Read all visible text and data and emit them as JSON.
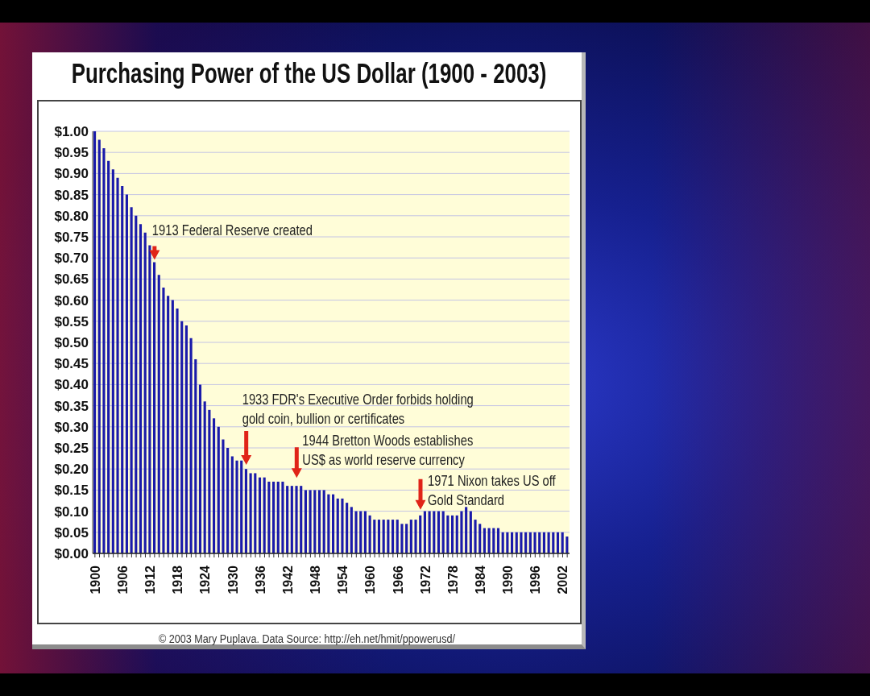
{
  "chart_data": {
    "type": "bar",
    "title": "Purchasing Power of the US Dollar (1900 - 2003)",
    "x": [
      1900,
      1901,
      1902,
      1903,
      1904,
      1905,
      1906,
      1907,
      1908,
      1909,
      1910,
      1911,
      1912,
      1913,
      1914,
      1915,
      1916,
      1917,
      1918,
      1919,
      1920,
      1921,
      1922,
      1923,
      1924,
      1925,
      1926,
      1927,
      1928,
      1929,
      1930,
      1931,
      1932,
      1933,
      1934,
      1935,
      1936,
      1937,
      1938,
      1939,
      1940,
      1941,
      1942,
      1943,
      1944,
      1945,
      1946,
      1947,
      1948,
      1949,
      1950,
      1951,
      1952,
      1953,
      1954,
      1955,
      1956,
      1957,
      1958,
      1959,
      1960,
      1961,
      1962,
      1963,
      1964,
      1965,
      1966,
      1967,
      1968,
      1969,
      1970,
      1971,
      1972,
      1973,
      1974,
      1975,
      1976,
      1977,
      1978,
      1979,
      1980,
      1981,
      1982,
      1983,
      1984,
      1985,
      1986,
      1987,
      1988,
      1989,
      1990,
      1991,
      1992,
      1993,
      1994,
      1995,
      1996,
      1997,
      1998,
      1999,
      2000,
      2001,
      2002,
      2003
    ],
    "values": [
      1.0,
      0.98,
      0.96,
      0.93,
      0.91,
      0.89,
      0.87,
      0.85,
      0.82,
      0.8,
      0.78,
      0.76,
      0.73,
      0.69,
      0.66,
      0.63,
      0.61,
      0.6,
      0.58,
      0.55,
      0.54,
      0.51,
      0.46,
      0.4,
      0.36,
      0.34,
      0.32,
      0.3,
      0.27,
      0.25,
      0.23,
      0.22,
      0.22,
      0.2,
      0.19,
      0.19,
      0.18,
      0.18,
      0.17,
      0.17,
      0.17,
      0.17,
      0.16,
      0.16,
      0.16,
      0.16,
      0.15,
      0.15,
      0.15,
      0.15,
      0.15,
      0.14,
      0.14,
      0.13,
      0.13,
      0.12,
      0.11,
      0.1,
      0.1,
      0.1,
      0.09,
      0.08,
      0.08,
      0.08,
      0.08,
      0.08,
      0.08,
      0.07,
      0.07,
      0.08,
      0.08,
      0.09,
      0.1,
      0.1,
      0.1,
      0.1,
      0.1,
      0.09,
      0.09,
      0.09,
      0.1,
      0.11,
      0.1,
      0.08,
      0.07,
      0.06,
      0.06,
      0.06,
      0.06,
      0.05,
      0.05,
      0.05,
      0.05,
      0.05,
      0.05,
      0.05,
      0.05,
      0.05,
      0.05,
      0.05,
      0.05,
      0.05,
      0.05,
      0.04
    ],
    "color": "#1a1aaa",
    "xlim": [
      1899.5,
      2003.5
    ],
    "xticks": [
      1900,
      {
        "value": 1901,
        "label": null
      },
      {
        "value": 1902,
        "label": null
      },
      {
        "value": 1903,
        "label": null
      },
      {
        "value": 1904,
        "label": null
      },
      {
        "value": 1905,
        "label": null
      },
      1906,
      {
        "value": 1907,
        "label": null
      },
      {
        "value": 1908,
        "label": null
      },
      {
        "value": 1909,
        "label": null
      },
      {
        "value": 1910,
        "label": null
      },
      {
        "value": 1911,
        "label": null
      },
      1912,
      {
        "value": 1913,
        "label": null
      },
      {
        "value": 1914,
        "label": null
      },
      {
        "value": 1915,
        "label": null
      },
      {
        "value": 1916,
        "label": null
      },
      {
        "value": 1917,
        "label": null
      },
      1918,
      {
        "value": 1919,
        "label": null
      },
      {
        "value": 1920,
        "label": null
      },
      {
        "value": 1921,
        "label": null
      },
      {
        "value": 1922,
        "label": null
      },
      {
        "value": 1923,
        "label": null
      },
      1924,
      {
        "value": 1925,
        "label": null
      },
      {
        "value": 1926,
        "label": null
      },
      {
        "value": 1927,
        "label": null
      },
      {
        "value": 1928,
        "label": null
      },
      {
        "value": 1929,
        "label": null
      },
      1930,
      {
        "value": 1931,
        "label": null
      },
      {
        "value": 1932,
        "label": null
      },
      {
        "value": 1933,
        "label": null
      },
      {
        "value": 1934,
        "label": null
      },
      {
        "value": 1935,
        "label": null
      },
      1936,
      {
        "value": 1937,
        "label": null
      },
      {
        "value": 1938,
        "label": null
      },
      {
        "value": 1939,
        "label": null
      },
      {
        "value": 1940,
        "label": null
      },
      {
        "value": 1941,
        "label": null
      },
      1942,
      {
        "value": 1943,
        "label": null
      },
      {
        "value": 1944,
        "label": null
      },
      {
        "value": 1945,
        "label": null
      },
      {
        "value": 1946,
        "label": null
      },
      {
        "value": 1947,
        "label": null
      },
      1948,
      {
        "value": 1949,
        "label": null
      },
      {
        "value": 1950,
        "label": null
      },
      {
        "value": 1951,
        "label": null
      },
      {
        "value": 1952,
        "label": null
      },
      {
        "value": 1953,
        "label": null
      },
      1954,
      {
        "value": 1955,
        "label": null
      },
      {
        "value": 1956,
        "label": null
      },
      {
        "value": 1957,
        "label": null
      },
      {
        "value": 1958,
        "label": null
      },
      {
        "value": 1959,
        "label": null
      },
      1960,
      {
        "value": 1961,
        "label": null
      },
      {
        "value": 1962,
        "label": null
      },
      {
        "value": 1963,
        "label": null
      },
      {
        "value": 1964,
        "label": null
      },
      {
        "value": 1965,
        "label": null
      },
      1966,
      {
        "value": 1967,
        "label": null
      },
      {
        "value": 1968,
        "label": null
      },
      {
        "value": 1969,
        "label": null
      },
      {
        "value": 1970,
        "label": null
      },
      {
        "value": 1971,
        "label": null
      },
      1972,
      {
        "value": 1973,
        "label": null
      },
      {
        "value": 1974,
        "label": null
      },
      {
        "value": 1975,
        "label": null
      },
      {
        "value": 1976,
        "label": null
      },
      {
        "value": 1977,
        "label": null
      },
      1978,
      {
        "value": 1979,
        "label": null
      },
      {
        "value": 1980,
        "label": null
      },
      {
        "value": 1981,
        "label": null
      },
      {
        "value": 1982,
        "label": null
      },
      {
        "value": 1983,
        "label": null
      },
      1984,
      {
        "value": 1985,
        "label": null
      },
      {
        "value": 1986,
        "label": null
      },
      {
        "value": 1987,
        "label": null
      },
      {
        "value": 1988,
        "label": null
      },
      {
        "value": 1989,
        "label": null
      },
      1990,
      {
        "value": 1991,
        "label": null
      },
      {
        "value": 1992,
        "label": null
      },
      {
        "value": 1993,
        "label": null
      },
      {
        "value": 1994,
        "label": null
      },
      {
        "value": 1995,
        "label": null
      },
      1996,
      {
        "value": 1997,
        "label": null
      },
      {
        "value": 1998,
        "label": null
      },
      {
        "value": 1999,
        "label": null
      },
      {
        "value": 2000,
        "label": null
      },
      {
        "value": 2001,
        "label": null
      },
      2002,
      {
        "value": 2003,
        "label": null
      }
    ],
    "ylim": [
      0,
      1
    ],
    "yticks": [
      {
        "value": 0,
        "label": "$0.00"
      },
      {
        "value": 0.05,
        "label": "$0.05"
      },
      {
        "value": 0.1,
        "label": "$0.10"
      },
      {
        "value": 0.15,
        "label": "$0.15"
      },
      {
        "value": 0.2,
        "label": "$0.20"
      },
      {
        "value": 0.25,
        "label": "$0.25"
      },
      {
        "value": 0.3,
        "label": "$0.30"
      },
      {
        "value": 0.35,
        "label": "$0.35"
      },
      {
        "value": 0.4,
        "label": "$0.40"
      },
      {
        "value": 0.45,
        "label": "$0.45"
      },
      {
        "value": 0.5,
        "label": "$0.50"
      },
      {
        "value": 0.55,
        "label": "$0.55"
      },
      {
        "value": 0.6,
        "label": "$0.60"
      },
      {
        "value": 0.65,
        "label": "$0.65"
      },
      {
        "value": 0.7,
        "label": "$0.70"
      },
      {
        "value": 0.75,
        "label": "$0.75"
      },
      {
        "value": 0.8,
        "label": "$0.80"
      },
      {
        "value": 0.85,
        "label": "$0.85"
      },
      {
        "value": 0.9,
        "label": "$0.90"
      },
      {
        "value": 0.95,
        "label": "$0.95"
      },
      {
        "value": 1,
        "label": "$1.00"
      }
    ],
    "grid": "y",
    "annotations": [
      {
        "text": "1913 Federal Reserve created",
        "x": 1913,
        "y": 0.69
      },
      {
        "text": "1933 FDR's Executive Order forbids holding gold coin, bullion or certificates",
        "x": 1933,
        "y": 0.21
      },
      {
        "text": "1944 Bretton Woods establishes US$ as world reserve currency",
        "x": 1944,
        "y": 0.16
      },
      {
        "text": "1971 Nixon takes US off Gold Standard",
        "x": 1971,
        "y": 0.09
      },
      "© 2003 Mary Puplava. Data Source:  http://eh.net/hmit/ppowerusd/"
    ]
  }
}
